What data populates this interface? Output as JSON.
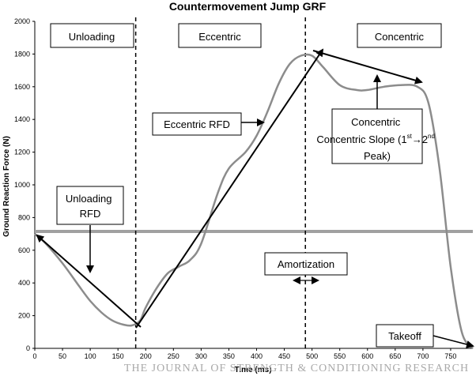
{
  "chart_data": {
    "type": "line",
    "title": "Countermovement Jump GRF",
    "xlabel": "Time (ms)",
    "ylabel": "Ground Reaction Force (N)",
    "xlim": [
      0,
      790
    ],
    "ylim": [
      0,
      2000
    ],
    "x_ticks": [
      0,
      50,
      100,
      150,
      200,
      250,
      300,
      350,
      400,
      450,
      500,
      550,
      600,
      650,
      700,
      750
    ],
    "y_ticks": [
      0,
      200,
      400,
      600,
      800,
      1000,
      1200,
      1400,
      1600,
      1800,
      2000
    ],
    "series": [
      {
        "color": "#8c8c8c",
        "x": [
          0,
          20,
          50,
          80,
          100,
          120,
          140,
          160,
          175,
          190,
          200,
          220,
          240,
          260,
          280,
          300,
          330,
          350,
          380,
          400,
          420,
          440,
          460,
          480,
          500,
          520,
          550,
          580,
          600,
          630,
          660,
          690,
          710,
          730,
          750,
          770,
          790
        ],
        "y": [
          700,
          640,
          520,
          380,
          290,
          220,
          170,
          145,
          140,
          170,
          250,
          370,
          460,
          500,
          540,
          640,
          950,
          1100,
          1200,
          1300,
          1450,
          1620,
          1740,
          1790,
          1790,
          1720,
          1610,
          1580,
          1580,
          1600,
          1610,
          1600,
          1500,
          1100,
          500,
          100,
          0
        ]
      }
    ],
    "body_weight_line": {
      "y": 715,
      "color": "#a0a0a0"
    },
    "phase_dividers_x": [
      182,
      488
    ],
    "phases": [
      "Unloading",
      "Eccentric",
      "Concentric"
    ],
    "annotations": {
      "unloading_rfd": "Unloading RFD",
      "eccentric_rfd": "Eccentric RFD",
      "concentric_slope_main": "Concentric Slope (1",
      "concentric_slope_sup1": "st",
      "concentric_slope_arrow": "→2",
      "concentric_slope_sup2": "nd",
      "concentric_slope_tail": "Peak)",
      "amortization": "Amortization",
      "takeoff": "Takeoff"
    },
    "grid": false
  },
  "watermark": "THE JOURNAL OF STRENGTH & CONDITIONING RESEARCH"
}
